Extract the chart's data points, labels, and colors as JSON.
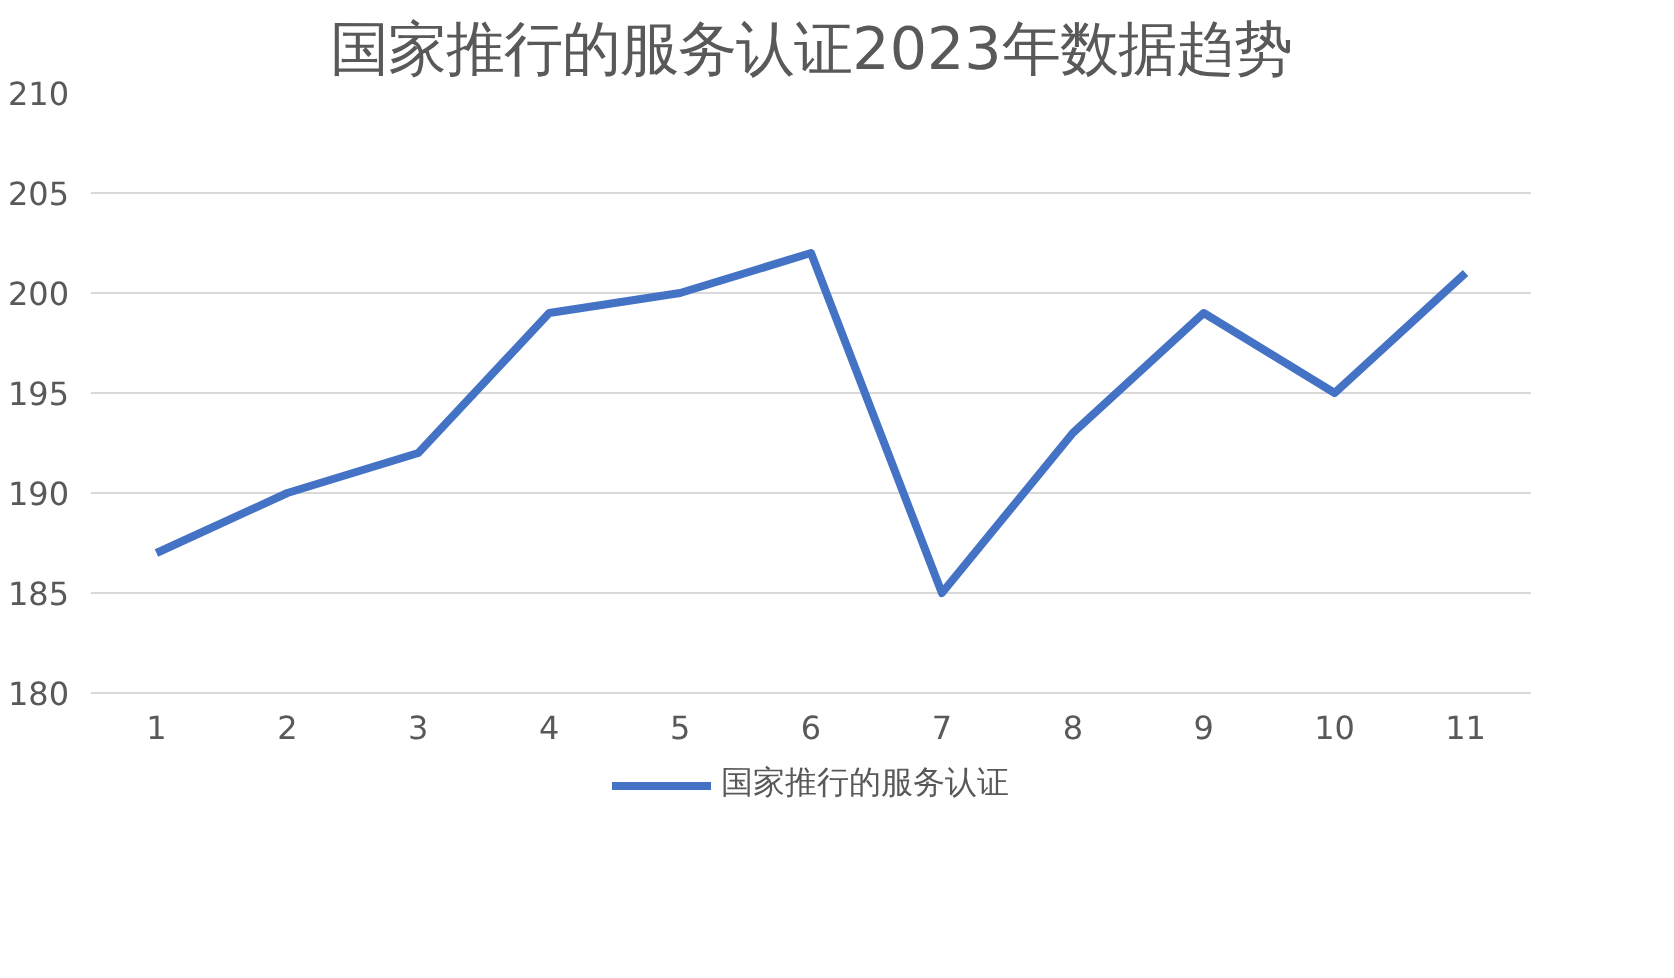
{
  "chart_data": {
    "type": "line",
    "title": "国家推行的服务认证2023年数据趋势",
    "categories": [
      "1",
      "2",
      "3",
      "4",
      "5",
      "6",
      "7",
      "8",
      "9",
      "10",
      "11"
    ],
    "series": [
      {
        "name": "国家推行的服务认证",
        "color": "#4472c4",
        "values": [
          187,
          190,
          192,
          199,
          200,
          202,
          185,
          193,
          199,
          195,
          201
        ]
      }
    ],
    "ylim": [
      180,
      210
    ],
    "yticks": [
      180,
      185,
      190,
      195,
      200,
      205,
      210
    ],
    "grid": "y",
    "legend": "bottom",
    "marker": "none",
    "line_style": "solid"
  }
}
